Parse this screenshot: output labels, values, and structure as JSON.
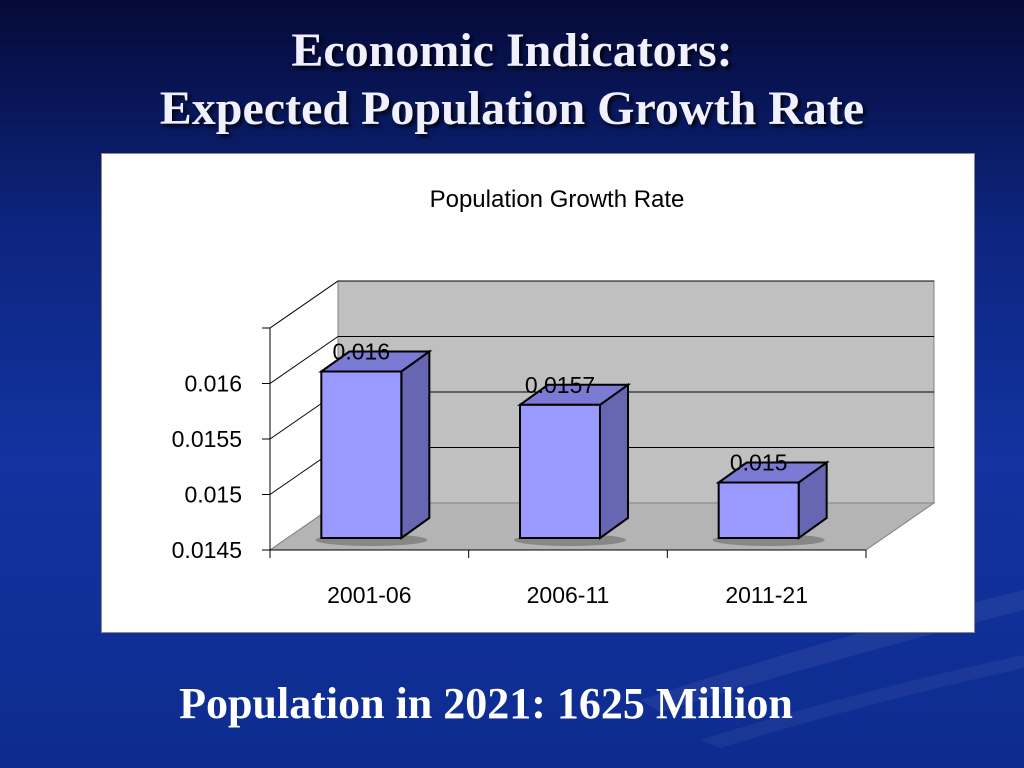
{
  "slide": {
    "title_line1": "Economic Indicators:",
    "title_line2": "Expected Population Growth Rate",
    "footer": "Population in 2021: 1625 Million"
  },
  "colors": {
    "background": "#0d2580",
    "bar_front": "#9999ff",
    "bar_side": "#6666b3",
    "bar_top": "#7b7bd6",
    "back_wall": "#c0c0c0",
    "floor": "#b4b4b4"
  },
  "chart_data": {
    "type": "bar",
    "style": "3d-column",
    "title": "Population Growth Rate",
    "categories": [
      "2001-06",
      "2006-11",
      "2011-21"
    ],
    "values": [
      0.016,
      0.0157,
      0.015
    ],
    "data_labels": [
      "0.016",
      "0.0157",
      "0.015"
    ],
    "yticks": [
      "0.0145",
      "0.015",
      "0.0155",
      "0.016"
    ],
    "ylim": [
      0.0145,
      0.0165
    ],
    "grid": true,
    "legend": "none"
  }
}
